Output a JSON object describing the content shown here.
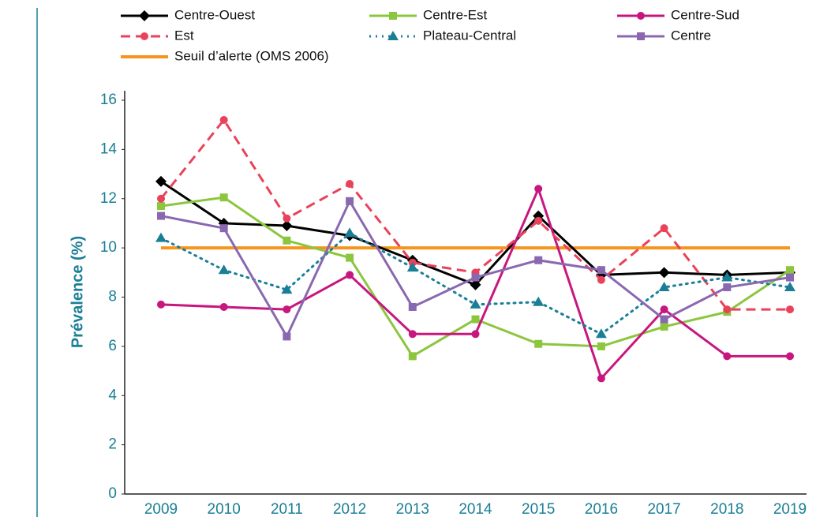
{
  "chart_data": {
    "type": "line",
    "y_label": "Prévalence (%)",
    "categories": [
      "2009",
      "2010",
      "2011",
      "2012",
      "2013",
      "2014",
      "2015",
      "2016",
      "2017",
      "2018",
      "2019"
    ],
    "ylim": [
      0,
      16
    ],
    "yticks": [
      0,
      2,
      4,
      6,
      8,
      10,
      12,
      14,
      16
    ],
    "grid": false,
    "series": [
      {
        "name": "Seuil d’alerte (OMS 2006)",
        "color": "#f7941d",
        "marker": "none",
        "dash": "solid",
        "values": [
          10,
          10,
          10,
          10,
          10,
          10,
          10,
          10,
          10,
          10,
          10
        ]
      },
      {
        "name": "Centre-Ouest",
        "color": "#000000",
        "marker": "diamond",
        "dash": "solid",
        "values": [
          12.7,
          11.0,
          10.9,
          10.5,
          9.5,
          8.5,
          11.3,
          8.9,
          9.0,
          8.9,
          9.0
        ]
      },
      {
        "name": "Centre-Est",
        "color": "#8cc63f",
        "marker": "square",
        "dash": "solid",
        "values": [
          11.7,
          12.05,
          10.3,
          9.6,
          5.6,
          7.1,
          6.1,
          6.0,
          6.8,
          7.4,
          9.1
        ]
      },
      {
        "name": "Centre-Sud",
        "color": "#c7177f",
        "marker": "circle",
        "dash": "solid",
        "values": [
          7.7,
          7.6,
          7.5,
          8.9,
          6.5,
          6.5,
          12.4,
          4.7,
          7.5,
          5.6,
          5.6
        ]
      },
      {
        "name": "Est",
        "color": "#e8435a",
        "marker": "circle",
        "dash": "dashed",
        "values": [
          12.0,
          15.2,
          11.2,
          12.6,
          9.4,
          9.0,
          11.1,
          8.7,
          10.8,
          7.5,
          7.5
        ]
      },
      {
        "name": "Plateau-Central",
        "color": "#1a7f96",
        "marker": "triangle",
        "dash": "dotted",
        "values": [
          10.4,
          9.1,
          8.3,
          10.6,
          9.2,
          7.7,
          7.8,
          6.5,
          8.4,
          8.8,
          8.4
        ]
      },
      {
        "name": "Centre",
        "color": "#8a68b0",
        "marker": "square",
        "dash": "solid",
        "values": [
          11.3,
          10.8,
          6.4,
          11.9,
          7.6,
          8.8,
          9.5,
          9.1,
          7.1,
          8.4,
          8.8
        ]
      }
    ]
  }
}
